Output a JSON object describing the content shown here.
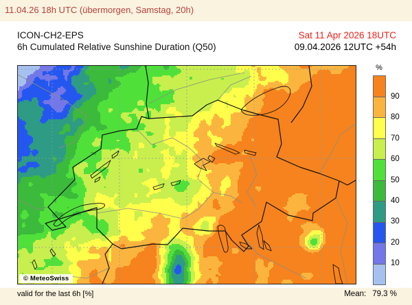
{
  "header": {
    "text": "11.04.26 18h UTC (übermorgen, Samstag, 20h)",
    "color": "#B5423C"
  },
  "titlebar": {
    "model": "ICON-CH2-EPS",
    "product": "6h Cumulated Relative Sunshine Duration (Q50)",
    "valid": "Sat 11 Apr 2026 18UTC",
    "valid_color": "#E8231A",
    "run": "09.04.2026 12UTC +54h"
  },
  "map": {
    "attribution": "© MeteoSwiss"
  },
  "legend": {
    "unit": "%",
    "ticks": [
      "90",
      "80",
      "70",
      "60",
      "50",
      "40",
      "30",
      "20",
      "10"
    ],
    "thresholds": [
      10,
      20,
      30,
      40,
      50,
      60,
      70,
      80,
      90
    ],
    "colors_low_to_high": [
      "#A6C1F0",
      "#7377E8",
      "#2457F0",
      "#2E9B85",
      "#3CBA3C",
      "#4FE13A",
      "#C8EF4E",
      "#FEFE4B",
      "#FBB53E",
      "#F6831D"
    ]
  },
  "footer": {
    "left": "valid for the last 6h [%]",
    "mean_label": "Mean:",
    "mean_value": "79.3 %"
  }
}
